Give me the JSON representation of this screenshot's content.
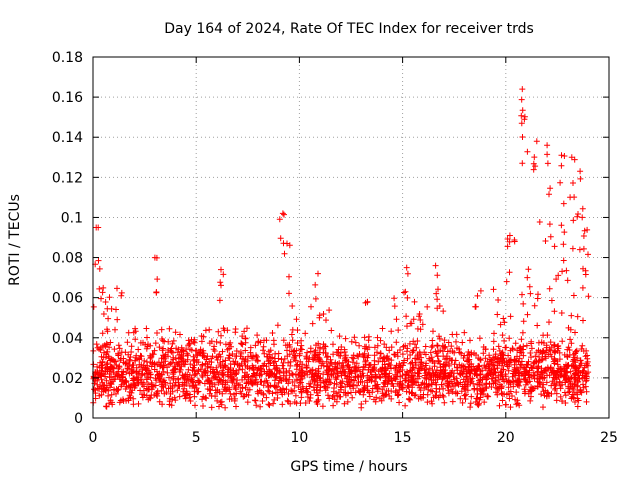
{
  "chart_data": {
    "type": "scatter",
    "title": "Day 164 of 2024, Rate Of TEC Index for receiver trds",
    "xlabel": "GPS time / hours",
    "ylabel": "ROTI / TECUs",
    "xlim": [
      0,
      25
    ],
    "ylim": [
      0,
      0.18
    ],
    "xticks": [
      0,
      5,
      10,
      15,
      20,
      25
    ],
    "xtick_labels": [
      "0",
      "5",
      "10",
      "15",
      "20",
      "25"
    ],
    "yticks": [
      0,
      0.02,
      0.04,
      0.06,
      0.08,
      0.1,
      0.12,
      0.14,
      0.16,
      0.18
    ],
    "ytick_labels": [
      "0",
      "0.02",
      "0.04",
      "0.06",
      "0.08",
      "0.1",
      "0.12",
      "0.14",
      "0.16",
      "0.18"
    ],
    "grid": true,
    "marker": "+",
    "color": "#ff0000",
    "x_range_observed": [
      0,
      24
    ],
    "typical_y_band": [
      0.005,
      0.04
    ],
    "notable_points": [
      {
        "x": 0.25,
        "y": 0.095
      },
      {
        "x": 3.0,
        "y": 0.08
      },
      {
        "x": 6.2,
        "y": 0.074
      },
      {
        "x": 9.2,
        "y": 0.102
      },
      {
        "x": 9.4,
        "y": 0.087
      },
      {
        "x": 10.9,
        "y": 0.072
      },
      {
        "x": 13.3,
        "y": 0.058
      },
      {
        "x": 15.2,
        "y": 0.075
      },
      {
        "x": 16.6,
        "y": 0.076
      },
      {
        "x": 20.2,
        "y": 0.091
      },
      {
        "x": 20.8,
        "y": 0.164
      },
      {
        "x": 20.9,
        "y": 0.149
      },
      {
        "x": 21.5,
        "y": 0.138
      },
      {
        "x": 22.0,
        "y": 0.136
      },
      {
        "x": 22.7,
        "y": 0.131
      },
      {
        "x": 23.2,
        "y": 0.13
      },
      {
        "x": 23.6,
        "y": 0.123
      },
      {
        "x": 23.7,
        "y": 0.1
      }
    ]
  }
}
